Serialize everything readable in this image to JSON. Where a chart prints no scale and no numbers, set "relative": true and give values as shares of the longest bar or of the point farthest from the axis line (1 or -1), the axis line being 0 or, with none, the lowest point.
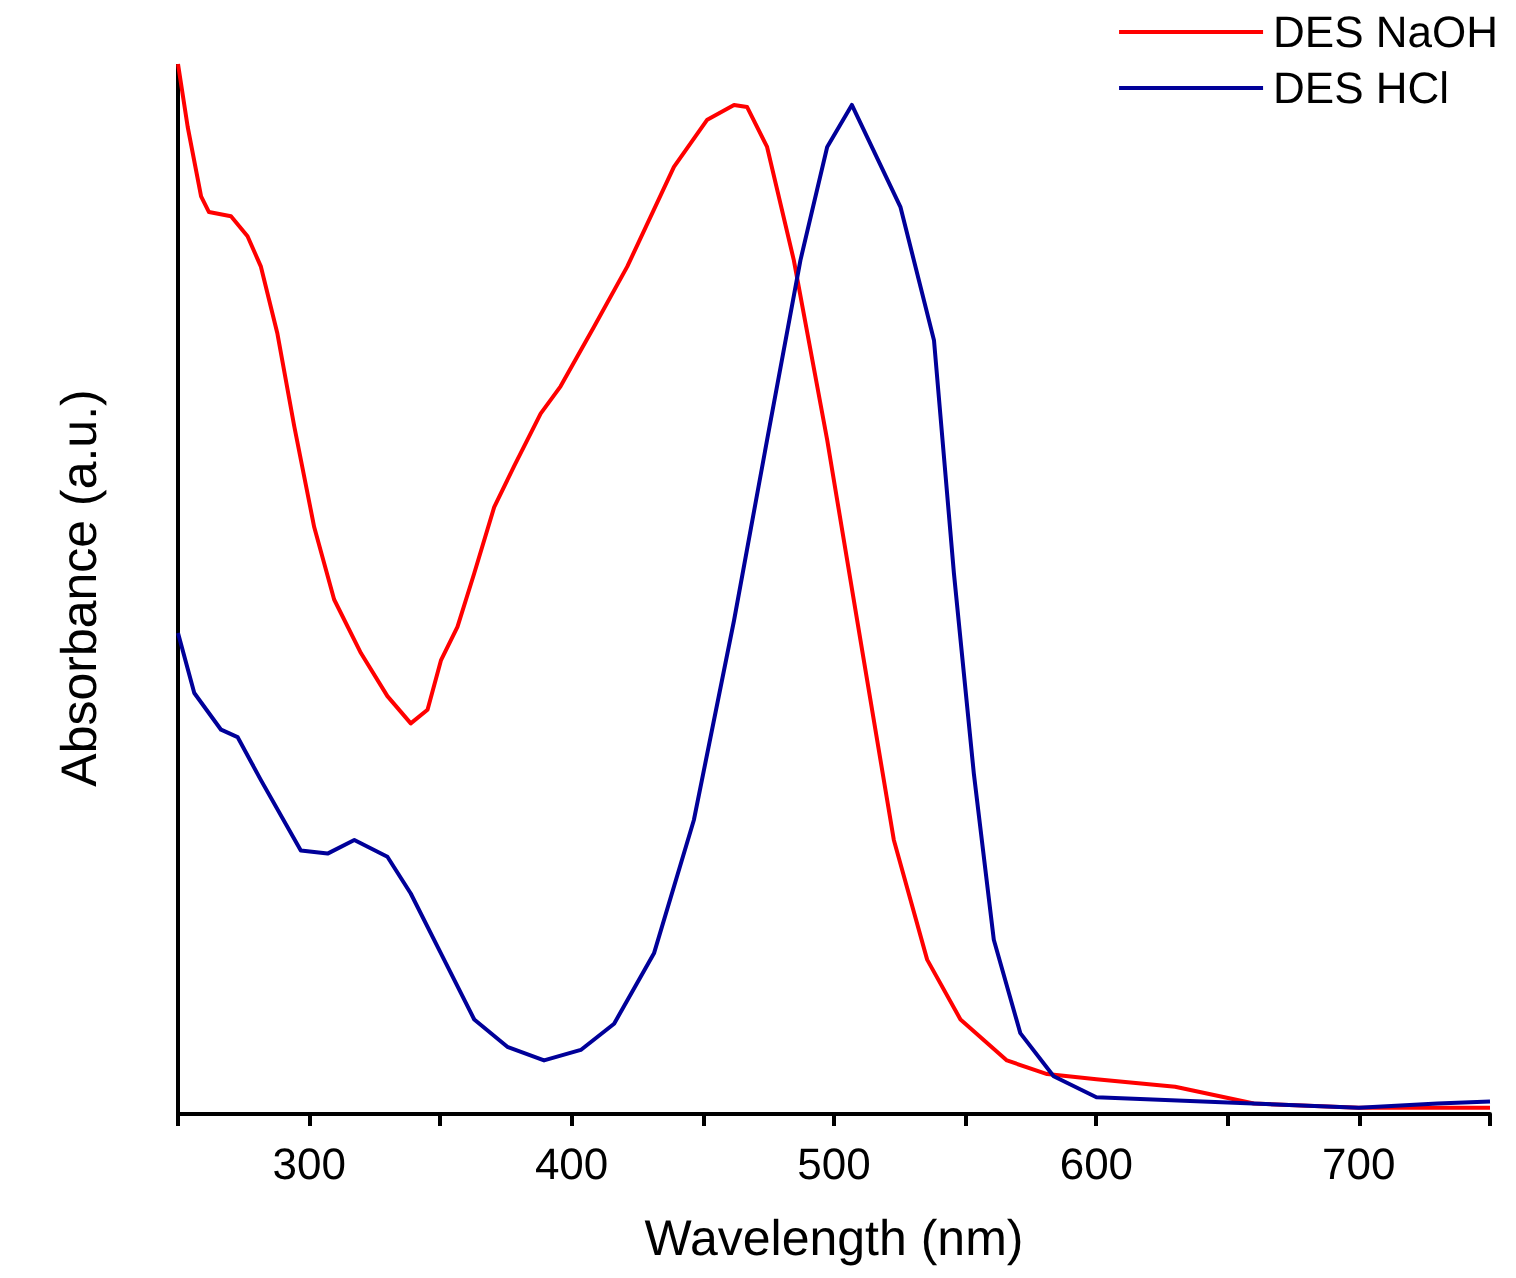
{
  "chart_data": {
    "type": "line",
    "xlabel": "Wavelength (nm)",
    "ylabel": "Absorbance (a.u.)",
    "relative": true,
    "xlim": [
      250,
      750
    ],
    "xticks": [
      {
        "value": 250,
        "label": null
      },
      300,
      {
        "value": 350,
        "label": null
      },
      400,
      {
        "value": 450,
        "label": null
      },
      500,
      {
        "value": 550,
        "label": null
      },
      600,
      {
        "value": 650,
        "label": null
      },
      700,
      {
        "value": 750,
        "label": null
      }
    ],
    "legend": "top right",
    "grid": false,
    "marker": "none",
    "line_style": "solid",
    "series": [
      {
        "name": "DES NaOH",
        "color": "#ff0000",
        "x": [
          250,
          253.7,
          258.8,
          261.8,
          270.2,
          276.5,
          281.6,
          287.9,
          294.3,
          301.9,
          309.5,
          319.7,
          329.8,
          338.7,
          345.1,
          350.2,
          356.5,
          362.9,
          370.5,
          378.1,
          388.2,
          395.8,
          408.6,
          421.2,
          439,
          451.7,
          461.9,
          466.9,
          474.5,
          484.7,
          497.4,
          510.1,
          522.8,
          535.5,
          548.2,
          565.9,
          581.2,
          600,
          630,
          660,
          700,
          750
        ],
        "values": [
          1.0,
          0.94,
          0.874,
          0.859,
          0.855,
          0.836,
          0.807,
          0.743,
          0.655,
          0.559,
          0.49,
          0.439,
          0.398,
          0.372,
          0.385,
          0.432,
          0.464,
          0.515,
          0.578,
          0.617,
          0.667,
          0.693,
          0.75,
          0.807,
          0.902,
          0.947,
          0.961,
          0.959,
          0.921,
          0.813,
          0.642,
          0.451,
          0.261,
          0.147,
          0.09,
          0.051,
          0.038,
          0.033,
          0.026,
          0.01,
          0.006,
          0.006
        ]
      },
      {
        "name": "DES HCl",
        "color": "#000099",
        "x": [
          250,
          256.2,
          266.4,
          272.7,
          281.6,
          296.8,
          307,
          317.2,
          329.8,
          338.7,
          350.2,
          362.9,
          375.5,
          389.5,
          403.5,
          416.2,
          431.4,
          446.6,
          461.9,
          474.5,
          487.2,
          497.4,
          506.8,
          525.3,
          538.1,
          545.7,
          553.3,
          560.9,
          571,
          583.7,
          600,
          650,
          700,
          730,
          750
        ],
        "values": [
          0.458,
          0.401,
          0.366,
          0.359,
          0.318,
          0.251,
          0.248,
          0.261,
          0.245,
          0.21,
          0.153,
          0.09,
          0.064,
          0.051,
          0.061,
          0.086,
          0.153,
          0.28,
          0.47,
          0.642,
          0.813,
          0.921,
          0.961,
          0.864,
          0.737,
          0.515,
          0.324,
          0.166,
          0.077,
          0.036,
          0.016,
          0.011,
          0.006,
          0.01,
          0.012
        ]
      }
    ]
  }
}
